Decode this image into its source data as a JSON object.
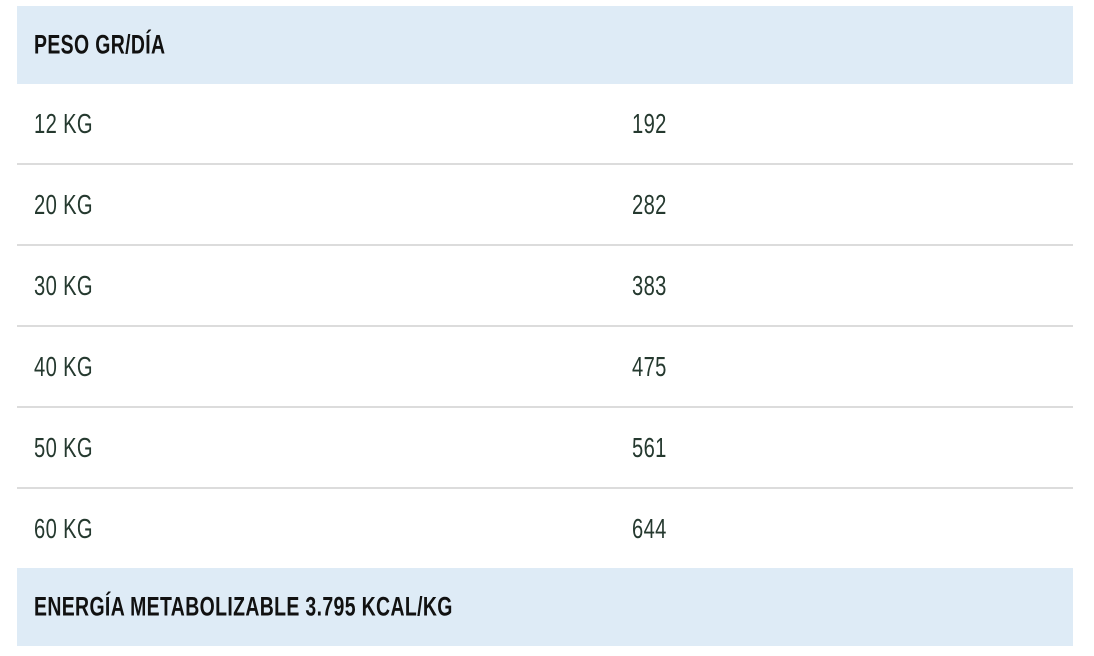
{
  "header": {
    "title": "PESO GR/DÍA"
  },
  "rows": [
    {
      "weight": "12 KG",
      "grams": "192"
    },
    {
      "weight": "20 KG",
      "grams": "282"
    },
    {
      "weight": "30 KG",
      "grams": "383"
    },
    {
      "weight": "40 KG",
      "grams": "475"
    },
    {
      "weight": "50 KG",
      "grams": "561"
    },
    {
      "weight": "60 KG",
      "grams": "644"
    }
  ],
  "footer": {
    "text": "ENERGÍA METABOLIZABLE 3.795 KCAL/KG"
  },
  "colors": {
    "header_bg": "#deebf6",
    "text": "#25392f"
  }
}
